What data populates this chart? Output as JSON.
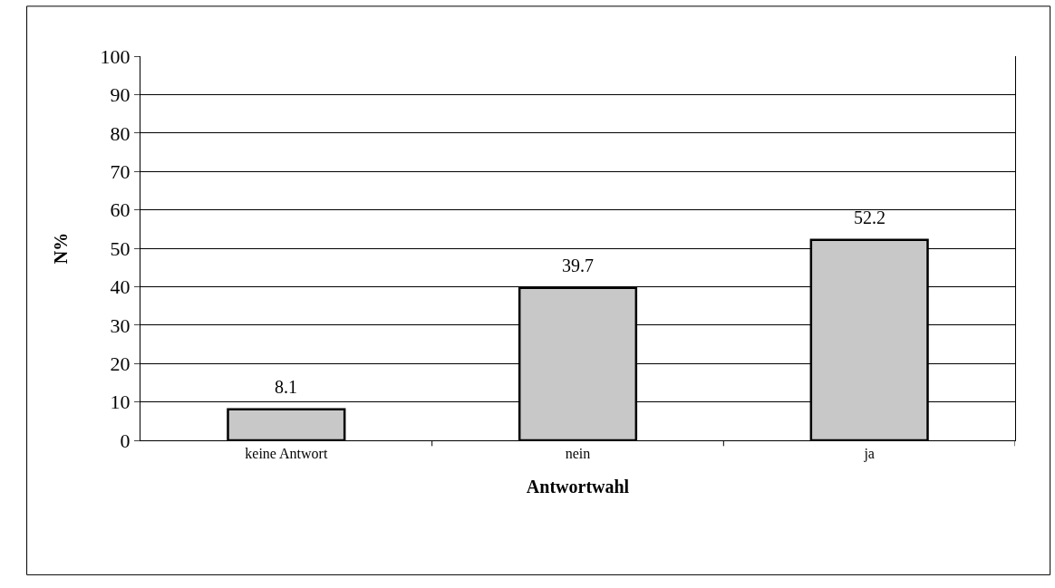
{
  "chart_data": {
    "type": "bar",
    "xlabel": "Antwortwahl",
    "ylabel": "N%",
    "categories": [
      "keine Antwort",
      "nein",
      "ja"
    ],
    "values": [
      8.1,
      39.7,
      52.2
    ],
    "color": "#c8c8c8",
    "ylim": [
      0,
      100
    ],
    "yticks": [
      0,
      10,
      20,
      30,
      40,
      50,
      60,
      70,
      80,
      90,
      100
    ],
    "grid": "y",
    "data_labels": true
  }
}
